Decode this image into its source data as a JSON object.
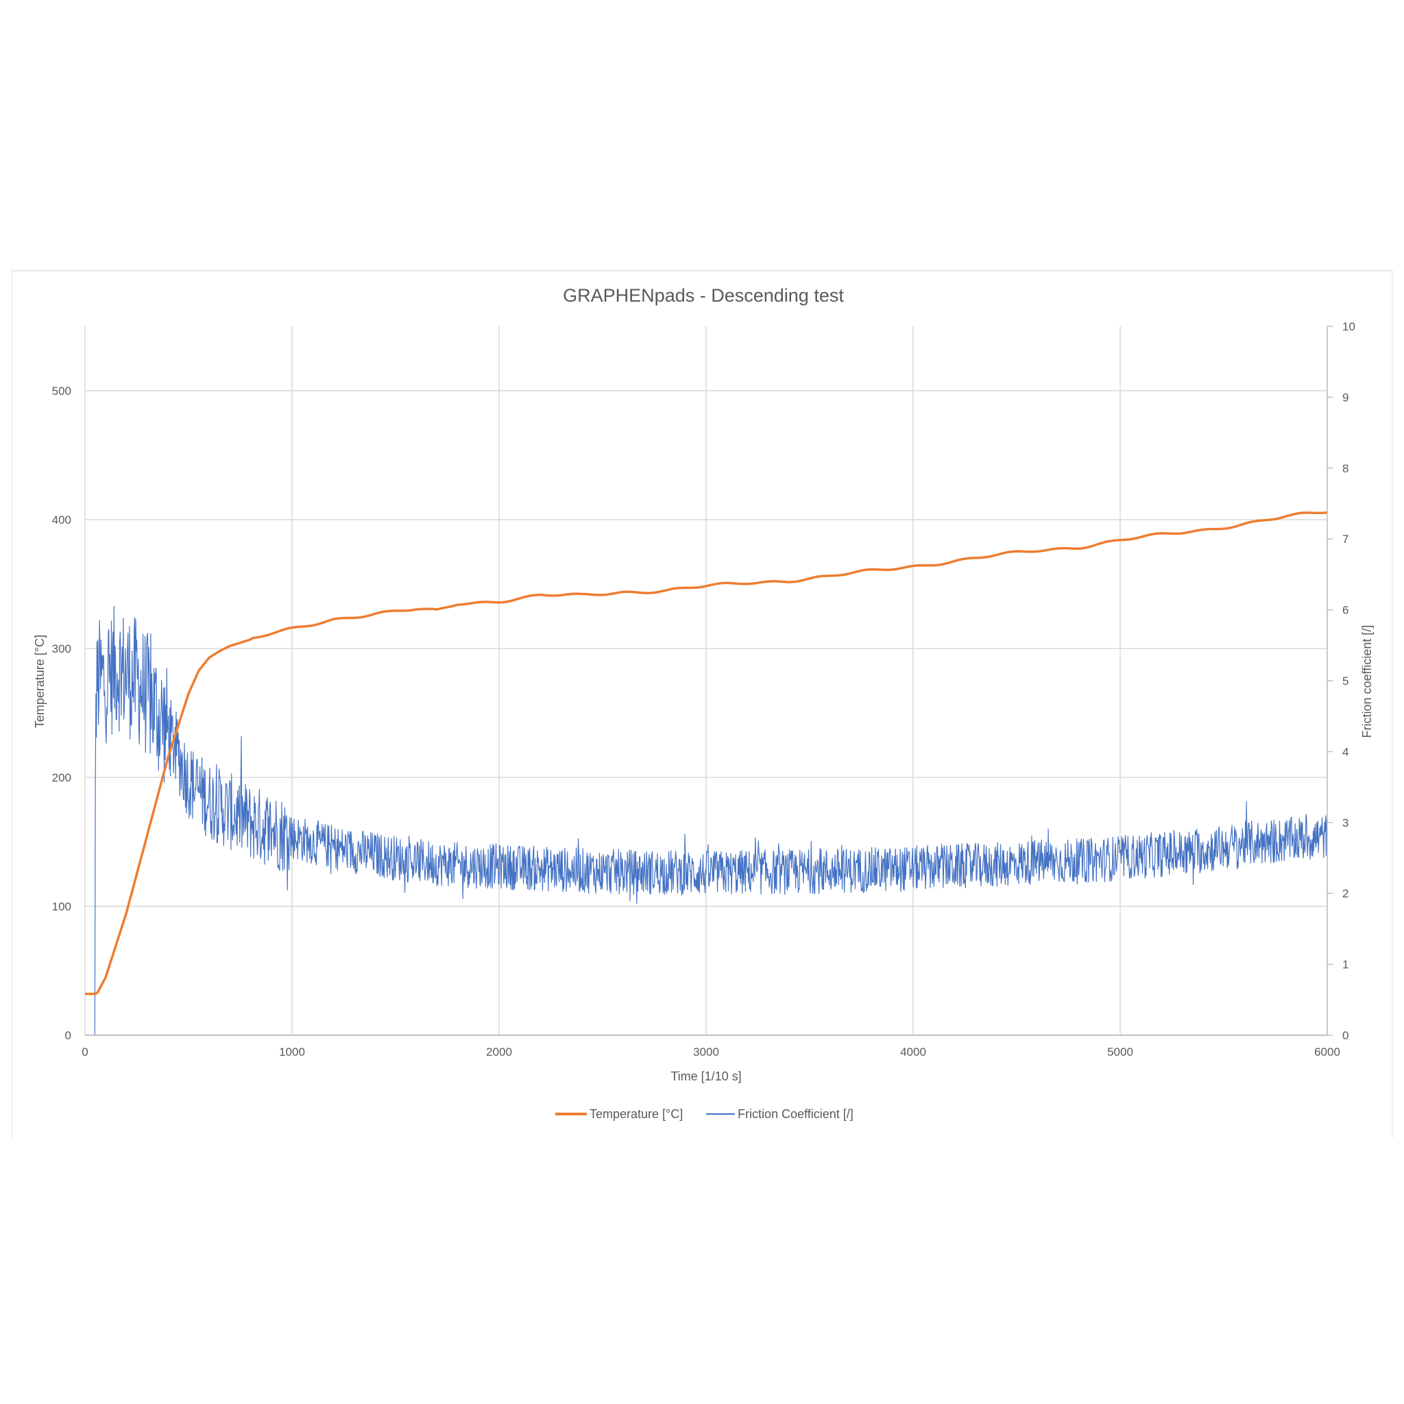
{
  "chart_data": {
    "type": "line",
    "title": "GRAPHENpads - Descending test",
    "xlabel": "Time [1/10 s]",
    "ylabel": "Temperature [°C]",
    "y2label": "Friction coefficient [/]",
    "xlim": [
      0,
      6000
    ],
    "ylim": [
      0,
      550
    ],
    "y2lim": [
      0,
      10
    ],
    "xticks": [
      0,
      1000,
      2000,
      3000,
      4000,
      5000,
      6000
    ],
    "yticks": [
      0,
      100,
      200,
      300,
      400,
      500
    ],
    "y2ticks": [
      0,
      1,
      2,
      3,
      4,
      5,
      6,
      7,
      8,
      9,
      10
    ],
    "grid": true,
    "legend_position": "bottom",
    "series": [
      {
        "name": "Temperature [°C]",
        "axis": "left",
        "color": "#ED7D31",
        "x": [
          0,
          50,
          60,
          100,
          200,
          300,
          400,
          500,
          550,
          600,
          650,
          700,
          800,
          900,
          1000,
          1200,
          1400,
          1600,
          1700,
          1800,
          2000,
          2200,
          2400,
          2600,
          2800,
          3000,
          3200,
          3400,
          3600,
          3800,
          4000,
          4200,
          4400,
          4600,
          4800,
          5000,
          5200,
          5400,
          5600,
          5800,
          6000
        ],
        "values": [
          32,
          32,
          33,
          45,
          95,
          155,
          215,
          265,
          283,
          293,
          298,
          302,
          307,
          311,
          315,
          323,
          327,
          330,
          329,
          335,
          337,
          341,
          341,
          344,
          345,
          348,
          351,
          353,
          356,
          360,
          364,
          368,
          372,
          376,
          379,
          384,
          388,
          392,
          397,
          402,
          406
        ]
      },
      {
        "name": "Friction Coefficient [/]",
        "axis": "right",
        "color": "#4472C4",
        "x": [
          0,
          40,
          50,
          60,
          100,
          150,
          200,
          250,
          300,
          400,
          500,
          600,
          800,
          1000,
          1200,
          1400,
          1600,
          1800,
          2000,
          2200,
          2400,
          2600,
          2800,
          3000,
          3200,
          3400,
          3600,
          3800,
          4000,
          4200,
          4400,
          4600,
          4800,
          5000,
          5200,
          5400,
          5600,
          5800,
          6000
        ],
        "values": [
          0,
          0,
          4.2,
          5.0,
          5.0,
          5.2,
          5.1,
          5.0,
          4.8,
          4.3,
          3.6,
          3.3,
          3.0,
          2.8,
          2.65,
          2.55,
          2.45,
          2.4,
          2.38,
          2.35,
          2.32,
          2.3,
          2.3,
          2.28,
          2.3,
          2.3,
          2.32,
          2.33,
          2.35,
          2.38,
          2.4,
          2.45,
          2.45,
          2.5,
          2.55,
          2.6,
          2.7,
          2.75,
          2.8
        ]
      }
    ]
  }
}
